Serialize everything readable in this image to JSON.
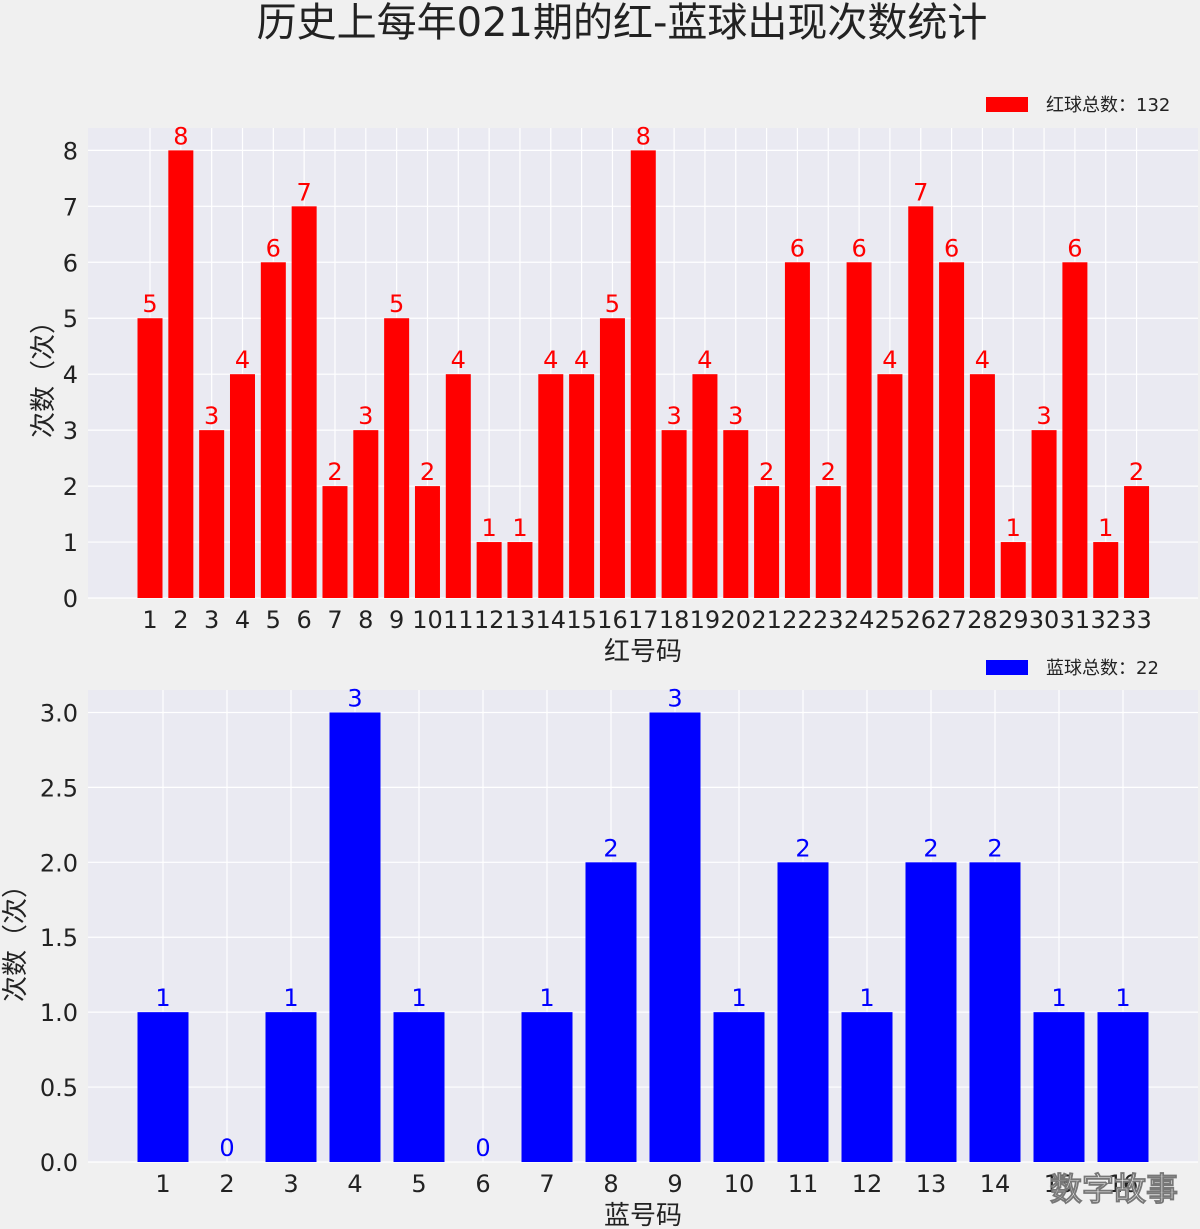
{
  "title": "历史上每年021期的红-蓝球出现次数统计",
  "watermark": "数字故事",
  "colors": {
    "red": "#ff0000",
    "blue": "#0000ff",
    "plot_bg": "#eaeaf2",
    "grid": "#ffffff"
  },
  "chart_data": [
    {
      "type": "bar",
      "categories": [
        "1",
        "2",
        "3",
        "4",
        "5",
        "6",
        "7",
        "8",
        "9",
        "10",
        "11",
        "12",
        "13",
        "14",
        "15",
        "16",
        "17",
        "18",
        "19",
        "20",
        "21",
        "22",
        "23",
        "24",
        "25",
        "26",
        "27",
        "28",
        "29",
        "30",
        "31",
        "32",
        "33"
      ],
      "series": [
        {
          "name": "红球总数：132",
          "values": [
            5,
            8,
            3,
            4,
            6,
            7,
            2,
            3,
            5,
            2,
            4,
            1,
            1,
            4,
            4,
            5,
            8,
            3,
            4,
            3,
            2,
            6,
            2,
            6,
            4,
            7,
            6,
            4,
            1,
            3,
            6,
            1,
            2
          ]
        }
      ],
      "xlabel": "红号码",
      "ylabel": "次数（次）",
      "ylim": [
        0,
        8.4
      ],
      "yticks": [
        "0",
        "1",
        "2",
        "3",
        "4",
        "5",
        "6",
        "7",
        "8"
      ],
      "grid": true,
      "legend": "top-right",
      "color": "#ff0000"
    },
    {
      "type": "bar",
      "categories": [
        "1",
        "2",
        "3",
        "4",
        "5",
        "6",
        "7",
        "8",
        "9",
        "10",
        "11",
        "12",
        "13",
        "14",
        "15",
        "16"
      ],
      "series": [
        {
          "name": "蓝球总数：22",
          "values": [
            1,
            0,
            1,
            3,
            1,
            0,
            1,
            2,
            3,
            1,
            2,
            1,
            2,
            2,
            1,
            1
          ]
        }
      ],
      "xlabel": "蓝号码",
      "ylabel": "次数（次）",
      "ylim": [
        0,
        3.15
      ],
      "yticks": [
        "0.0",
        "0.5",
        "1.0",
        "1.5",
        "2.0",
        "2.5",
        "3.0"
      ],
      "grid": true,
      "legend": "top-right",
      "color": "#0000ff"
    }
  ]
}
